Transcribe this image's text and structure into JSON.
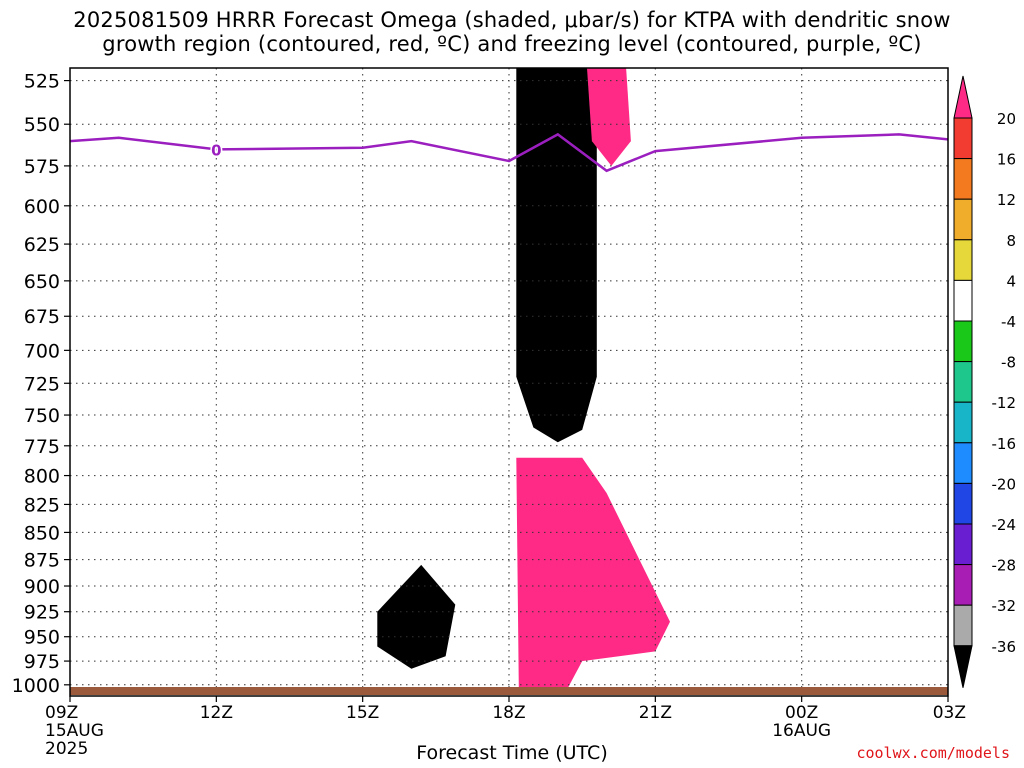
{
  "header": {
    "title_line1": "2025081509 HRRR Forecast Omega (shaded, μbar/s) for KTPA with dendritic snow",
    "title_line2": "growth region (contoured, red, ºC) and freezing level (contoured, purple, ºC)"
  },
  "footer": {
    "xlabel": "Forecast Time (UTC)",
    "credit": "coolwx.com/models"
  },
  "chart_data": {
    "type": "heatmap",
    "title": "2025081509 HRRR Forecast Omega (shaded, μbar/s) for KTPA with dendritic snow growth region (contoured, red, ºC) and freezing level (contoured, purple, ºC)",
    "xlabel": "Forecast Time (UTC)",
    "ylabel": "",
    "x_ticks": [
      {
        "hour": 0,
        "label": "09Z",
        "sub": [
          "15AUG",
          "2025"
        ]
      },
      {
        "hour": 3,
        "label": "12Z",
        "sub": []
      },
      {
        "hour": 6,
        "label": "15Z",
        "sub": []
      },
      {
        "hour": 9,
        "label": "18Z",
        "sub": []
      },
      {
        "hour": 12,
        "label": "21Z",
        "sub": []
      },
      {
        "hour": 15,
        "label": "00Z",
        "sub": [
          "16AUG"
        ]
      },
      {
        "hour": 18,
        "label": "03Z",
        "sub": []
      }
    ],
    "xlim": [
      0,
      18
    ],
    "y_ticks": [
      525,
      550,
      575,
      600,
      625,
      650,
      675,
      700,
      725,
      750,
      775,
      800,
      825,
      850,
      875,
      900,
      925,
      950,
      975,
      1000
    ],
    "ylim": [
      518,
      1012
    ],
    "y_scale": "log-pressure",
    "grid": true,
    "colorbar": {
      "labels": [
        "20",
        "16",
        "12",
        "8",
        "4",
        "-4",
        "-8",
        "-12",
        "-16",
        "-20",
        "-24",
        "-28",
        "-32",
        "-36"
      ],
      "colors": [
        "#ff2a86",
        "#f23c32",
        "#f47a20",
        "#f0ad2c",
        "#e6d83a",
        "#ffffff",
        "#19c819",
        "#1ec88c",
        "#18b4c8",
        "#1e8cff",
        "#2046e6",
        "#6a1ed2",
        "#a81eb4",
        "#aaaaaa",
        "#000000"
      ],
      "extend": "both"
    },
    "freezing_level": {
      "color": "#9b1fbf",
      "label": "0",
      "points": [
        [
          0,
          560
        ],
        [
          1,
          558
        ],
        [
          3,
          565
        ],
        [
          6,
          564
        ],
        [
          7,
          560
        ],
        [
          9,
          572
        ],
        [
          10,
          556
        ],
        [
          11,
          578
        ],
        [
          12,
          566
        ],
        [
          15,
          558
        ],
        [
          17,
          556
        ],
        [
          18,
          559
        ]
      ]
    },
    "ground_color": "#9b5a3c",
    "shaded_regions": [
      {
        "name": "black-core-upper",
        "color": "#000000",
        "points": [
          [
            9.15,
            518
          ],
          [
            10.8,
            518
          ],
          [
            10.8,
            720
          ],
          [
            10.5,
            762
          ],
          [
            10.0,
            772
          ],
          [
            9.5,
            760
          ],
          [
            9.15,
            720
          ]
        ]
      },
      {
        "name": "magenta-upper-right",
        "color": "#ff2a86",
        "points": [
          [
            10.6,
            518
          ],
          [
            11.4,
            518
          ],
          [
            11.5,
            560
          ],
          [
            11.1,
            575
          ],
          [
            10.7,
            560
          ]
        ]
      },
      {
        "name": "magenta-lower-core",
        "color": "#ff2a86",
        "points": [
          [
            9.15,
            785
          ],
          [
            10.5,
            785
          ],
          [
            11.0,
            815
          ],
          [
            12.3,
            935
          ],
          [
            12.0,
            965
          ],
          [
            10.5,
            975
          ],
          [
            10.2,
            1004
          ],
          [
            9.2,
            1004
          ]
        ]
      },
      {
        "name": "black-core-lower",
        "color": "#000000",
        "points": [
          [
            6.3,
            925
          ],
          [
            7.2,
            880
          ],
          [
            7.9,
            918
          ],
          [
            7.7,
            970
          ],
          [
            7.0,
            983
          ],
          [
            6.3,
            960
          ]
        ]
      }
    ]
  }
}
